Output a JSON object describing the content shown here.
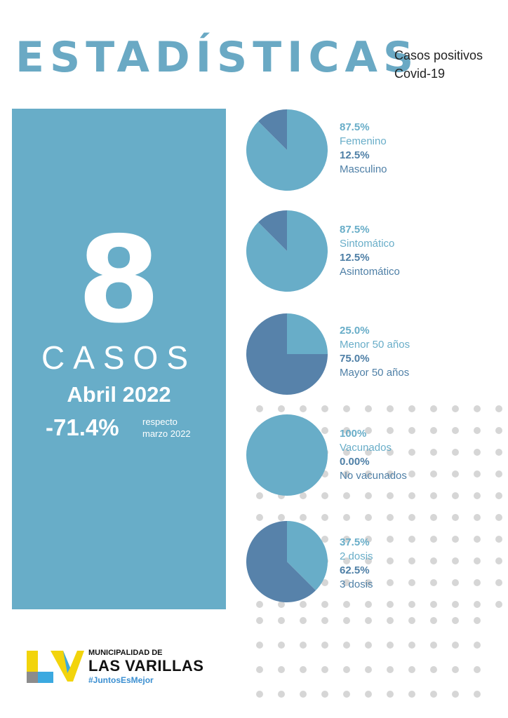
{
  "header": {
    "title": "ESTADÍSTICAS",
    "subtitle_line1": "Casos positivos",
    "subtitle_line2": "Covid-19"
  },
  "summary": {
    "cases": "8",
    "cases_label": "CASOS",
    "period": "Abril 2022",
    "change": "-71.4%",
    "change_note_line1": "respecto",
    "change_note_line2": "marzo 2022"
  },
  "colors": {
    "primary": "#68adc8",
    "secondary": "#4e7fa6",
    "title": "#6aa9c4"
  },
  "chart_data": [
    {
      "type": "pie",
      "slices": [
        {
          "label": "Femenino",
          "value": 87.5,
          "display": "87.5%",
          "color": "#68adc8"
        },
        {
          "label": "Masculino",
          "value": 12.5,
          "display": "12.5%",
          "color": "#5782aa"
        }
      ]
    },
    {
      "type": "pie",
      "slices": [
        {
          "label": "Sintomático",
          "value": 87.5,
          "display": "87.5%",
          "color": "#68adc8"
        },
        {
          "label": "Asintomático",
          "value": 12.5,
          "display": "12.5%",
          "color": "#5782aa"
        }
      ]
    },
    {
      "type": "pie",
      "slices": [
        {
          "label": "Menor 50 años",
          "value": 25.0,
          "display": "25.0%",
          "color": "#68adc8"
        },
        {
          "label": "Mayor 50 años",
          "value": 75.0,
          "display": "75.0%",
          "color": "#5782aa"
        }
      ]
    },
    {
      "type": "pie",
      "slices": [
        {
          "label": "Vacunados",
          "value": 100,
          "display": "100%",
          "color": "#68adc8"
        },
        {
          "label": "No vacunados",
          "value": 0,
          "display": "0.00%",
          "color": "#5782aa"
        }
      ]
    },
    {
      "type": "pie",
      "slices": [
        {
          "label": "2 dosis",
          "value": 37.5,
          "display": "37.5%",
          "color": "#68adc8"
        },
        {
          "label": "3 dosis",
          "value": 62.5,
          "display": "62.5%",
          "color": "#5782aa"
        }
      ]
    }
  ],
  "footer": {
    "org_line1": "MUNICIPALIDAD DE",
    "org_line2": "LAS VARILLAS",
    "hashtag": "#JuntosEsMejor"
  }
}
